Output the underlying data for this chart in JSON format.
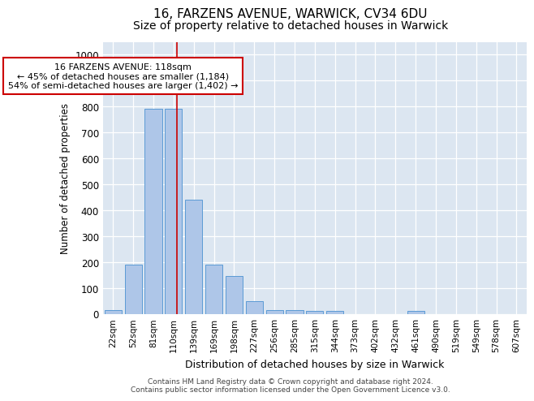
{
  "title_line1": "16, FARZENS AVENUE, WARWICK, CV34 6DU",
  "title_line2": "Size of property relative to detached houses in Warwick",
  "xlabel": "Distribution of detached houses by size in Warwick",
  "ylabel": "Number of detached properties",
  "categories": [
    "22sqm",
    "52sqm",
    "81sqm",
    "110sqm",
    "139sqm",
    "169sqm",
    "198sqm",
    "227sqm",
    "256sqm",
    "285sqm",
    "315sqm",
    "344sqm",
    "373sqm",
    "402sqm",
    "432sqm",
    "461sqm",
    "490sqm",
    "519sqm",
    "549sqm",
    "578sqm",
    "607sqm"
  ],
  "values": [
    15,
    190,
    790,
    790,
    440,
    190,
    145,
    50,
    15,
    15,
    10,
    10,
    0,
    0,
    0,
    10,
    0,
    0,
    0,
    0,
    0
  ],
  "bar_color": "#aec6e8",
  "bar_edge_color": "#5b9bd5",
  "red_line_x": 3.15,
  "annotation_text": "16 FARZENS AVENUE: 118sqm\n← 45% of detached houses are smaller (1,184)\n54% of semi-detached houses are larger (1,402) →",
  "annotation_box_color": "#ffffff",
  "annotation_box_edge_color": "#cc0000",
  "ylim": [
    0,
    1050
  ],
  "yticks": [
    0,
    100,
    200,
    300,
    400,
    500,
    600,
    700,
    800,
    900,
    1000
  ],
  "background_color": "#dce6f1",
  "footer_line1": "Contains HM Land Registry data © Crown copyright and database right 2024.",
  "footer_line2": "Contains public sector information licensed under the Open Government Licence v3.0.",
  "title_fontsize": 11,
  "subtitle_fontsize": 10,
  "bar_width": 0.85
}
